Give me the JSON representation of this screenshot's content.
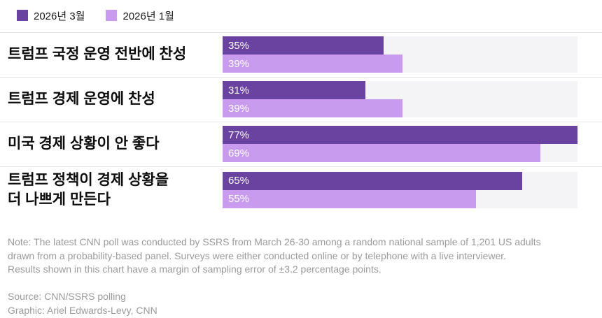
{
  "chart_data": {
    "type": "bar",
    "orientation": "horizontal",
    "value_suffix": "%",
    "xlim": [
      0,
      77
    ],
    "track_color": "#f4f3f5",
    "categories": [
      "트럼프 국정 운영 전반에 찬성",
      "트럼프 경제 운영에 찬성",
      "미국 경제 상황이 안 좋다",
      "트럼프 정책이 경제 상황을\n더 나쁘게 만든다"
    ],
    "series": [
      {
        "name": "2026년 3월",
        "color": "#6a42a0",
        "values": [
          35,
          31,
          77,
          65
        ]
      },
      {
        "name": "2026년 1월",
        "color": "#c89bef",
        "values": [
          39,
          39,
          69,
          55
        ]
      }
    ]
  },
  "note": {
    "lines": [
      "Note: The latest CNN poll was conducted by SSRS from March 26-30 among a random national sample of 1,201 US adults",
      "drawn from a probability-based panel. Surveys were either conducted online or by telephone with a live interviewer.",
      "Results shown in this chart have a margin of sampling error of ±3.2 percentage points."
    ]
  },
  "source": {
    "lines": [
      "Source: CNN/SSRS polling",
      "Graphic: Ariel Edwards-Levy, CNN"
    ]
  }
}
